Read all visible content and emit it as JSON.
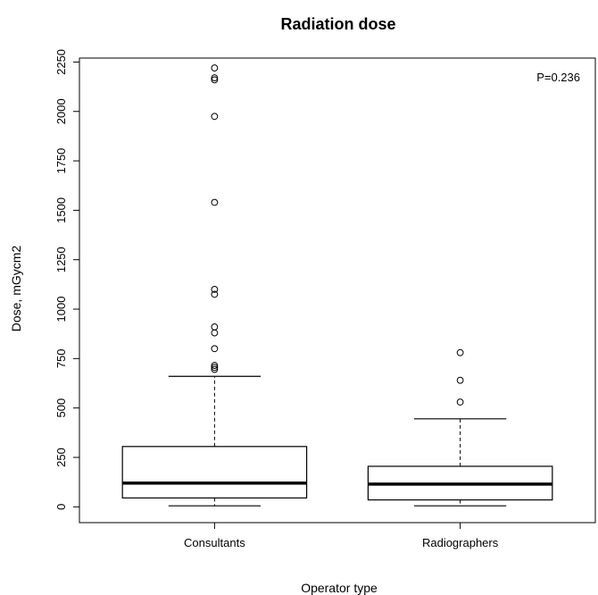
{
  "chart_data": {
    "type": "boxplot",
    "title": "Radiation dose",
    "xlabel": "Operator type",
    "ylabel": "Dose, mGycm2",
    "ylim": [
      -80,
      2270
    ],
    "yticks": [
      0,
      250,
      500,
      750,
      1000,
      1250,
      1500,
      1750,
      2000,
      2250
    ],
    "annotation": "P=0.236",
    "legend": "none",
    "grid": false,
    "categories": [
      "Consultants",
      "Radiographers"
    ],
    "boxes": [
      {
        "category": "Consultants",
        "whisker_low": 5,
        "q1": 45,
        "median": 120,
        "q3": 305,
        "whisker_high": 660,
        "outliers": [
          695,
          705,
          715,
          800,
          880,
          910,
          1075,
          1100,
          1540,
          1975,
          2160,
          2170,
          2220
        ]
      },
      {
        "category": "Radiographers",
        "whisker_low": 5,
        "q1": 35,
        "median": 115,
        "q3": 205,
        "whisker_high": 445,
        "outliers": [
          530,
          640,
          780
        ]
      }
    ]
  }
}
